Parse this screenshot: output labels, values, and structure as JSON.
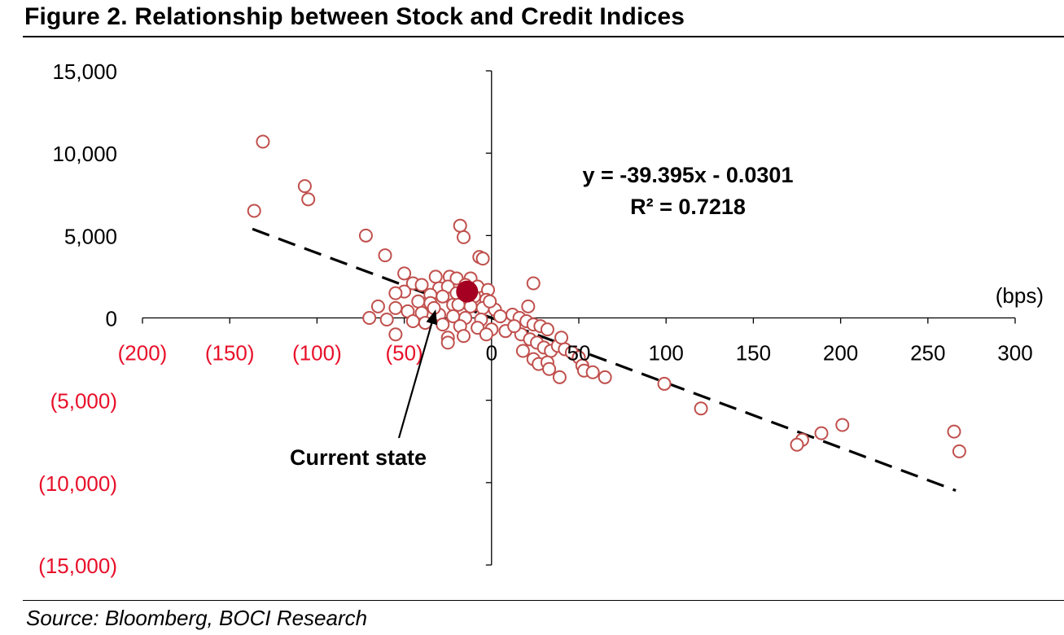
{
  "figure_title": "Figure 2. Relationship between Stock and Credit Indices",
  "source": "Source: Bloomberg, BOCI Research",
  "chart_data": {
    "type": "scatter",
    "xlim": [
      -200,
      300
    ],
    "ylim": [
      -15000,
      15000
    ],
    "x_ticks": [
      -200,
      -150,
      -100,
      -50,
      0,
      50,
      100,
      150,
      200,
      250,
      300
    ],
    "x_tick_labels": [
      "(200)",
      "(150)",
      "(100)",
      "(50)",
      "0",
      "50",
      "100",
      "150",
      "200",
      "250",
      "300"
    ],
    "y_ticks": [
      15000,
      10000,
      5000,
      0,
      -5000,
      -10000,
      -15000
    ],
    "y_tick_labels": [
      "15,000",
      "10,000",
      "5,000",
      "0",
      "(5,000)",
      "(10,000)",
      "(15,000)"
    ],
    "unit_label": "(bps)",
    "negative_label_color": "#e8102a",
    "marker_color": "#c0504d",
    "highlight_color": "#a50021",
    "equation": "y = -39.395x - 0.0301",
    "r_squared": "R² = 0.7218",
    "trendline": {
      "slope": -39.395,
      "intercept": -0.0301,
      "x_range": [
        -137,
        266
      ]
    },
    "annotation": {
      "text": "Current state",
      "x": -14,
      "y": 1600
    },
    "points": [
      [
        -131,
        10700
      ],
      [
        -107,
        8000
      ],
      [
        -105,
        7200
      ],
      [
        -136,
        6500
      ],
      [
        -72,
        5000
      ],
      [
        -61,
        3800
      ],
      [
        -18,
        5600
      ],
      [
        -16,
        4900
      ],
      [
        -7,
        3700
      ],
      [
        -5,
        3600
      ],
      [
        -50,
        2700
      ],
      [
        -32,
        2500
      ],
      [
        -24,
        2500
      ],
      [
        -20,
        2400
      ],
      [
        -12,
        2400
      ],
      [
        -45,
        2100
      ],
      [
        -40,
        2000
      ],
      [
        -30,
        1800
      ],
      [
        -25,
        1900
      ],
      [
        -15,
        2000
      ],
      [
        -8,
        1900
      ],
      [
        -2,
        1700
      ],
      [
        -50,
        1600
      ],
      [
        -55,
        1500
      ],
      [
        -35,
        1400
      ],
      [
        -28,
        1300
      ],
      [
        -20,
        1500
      ],
      [
        -10,
        1300
      ],
      [
        -3,
        1100
      ],
      [
        -42,
        1000
      ],
      [
        -35,
        900
      ],
      [
        -22,
        800
      ],
      [
        -12,
        700
      ],
      [
        -5,
        600
      ],
      [
        2,
        500
      ],
      [
        -55,
        600
      ],
      [
        -65,
        700
      ],
      [
        -48,
        400
      ],
      [
        -40,
        300
      ],
      [
        -30,
        200
      ],
      [
        -22,
        100
      ],
      [
        -15,
        0
      ],
      [
        -6,
        -100
      ],
      [
        5,
        100
      ],
      [
        12,
        200
      ],
      [
        -70,
        0
      ],
      [
        -60,
        -100
      ],
      [
        -45,
        -200
      ],
      [
        -38,
        -300
      ],
      [
        -28,
        -400
      ],
      [
        -18,
        -500
      ],
      [
        -8,
        -600
      ],
      [
        0,
        -700
      ],
      [
        8,
        -800
      ],
      [
        -55,
        -1000
      ],
      [
        -25,
        -1200
      ],
      [
        -25,
        -1500
      ],
      [
        -16,
        -1100
      ],
      [
        -3,
        -1000
      ],
      [
        16,
        0
      ],
      [
        20,
        -200
      ],
      [
        24,
        -400
      ],
      [
        28,
        -500
      ],
      [
        32,
        -700
      ],
      [
        17,
        -1000
      ],
      [
        22,
        -1300
      ],
      [
        26,
        -1500
      ],
      [
        30,
        -1800
      ],
      [
        34,
        -2000
      ],
      [
        38,
        -1700
      ],
      [
        42,
        -1900
      ],
      [
        46,
        -2100
      ],
      [
        50,
        -2400
      ],
      [
        18,
        -2000
      ],
      [
        24,
        -2500
      ],
      [
        27,
        -2800
      ],
      [
        32,
        -2700
      ],
      [
        33,
        -3100
      ],
      [
        39,
        -3600
      ],
      [
        52,
        -2900
      ],
      [
        53,
        -3200
      ],
      [
        58,
        -3300
      ],
      [
        65,
        -3600
      ],
      [
        99,
        -4000
      ],
      [
        120,
        -5500
      ],
      [
        178,
        -7400
      ],
      [
        175,
        -7700
      ],
      [
        189,
        -7000
      ],
      [
        201,
        -6500
      ],
      [
        265,
        -6900
      ],
      [
        268,
        -8100
      ],
      [
        24,
        2100
      ],
      [
        21,
        700
      ],
      [
        -19,
        800
      ],
      [
        -1,
        1000
      ],
      [
        13,
        -500
      ],
      [
        40,
        -1200
      ],
      [
        -33,
        600
      ]
    ],
    "highlight_point": [
      -14,
      1600
    ]
  }
}
